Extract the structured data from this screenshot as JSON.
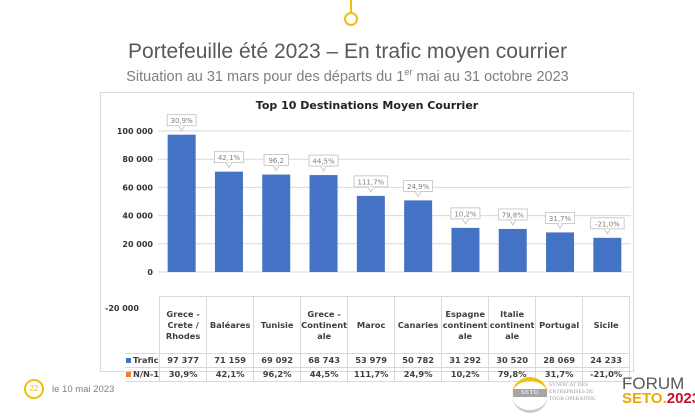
{
  "header": {
    "title": "Portefeuille été 2023 – En trafic moyen courrier",
    "subtitle_pre": "Situation au 31 mars pour des départs du 1",
    "subtitle_sup": "er",
    "subtitle_post": " mai au 31 octobre 2023"
  },
  "footer": {
    "page": "22",
    "date": "le 10 mai 2023",
    "logo_seto": "SETO",
    "logo_syndicat": "SYNDICAT DES ENTREPRISES DU TOUR OPERATING",
    "forum": "FORUM",
    "forum_seto": "SETO.",
    "forum_year": "2023"
  },
  "colors": {
    "bar": "#4472c4",
    "n1": "#ed7d31",
    "accent": "#f0c010",
    "year": "#c8102e"
  },
  "chart_data": {
    "type": "bar",
    "title": "Top 10 Destinations Moyen Courrier",
    "categories": [
      "Grece - Crete / Rhodes",
      "Baléares",
      "Tunisie",
      "Grece - Continentale",
      "Maroc",
      "Canaries",
      "Espagne continentale",
      "Italie continentale",
      "Portugal",
      "Sicile"
    ],
    "category_lines": [
      [
        "Grece -",
        "Crete /",
        "Rhodes"
      ],
      [
        "Baléares"
      ],
      [
        "Tunisie"
      ],
      [
        "Grece -",
        "Continent",
        "ale"
      ],
      [
        "Maroc"
      ],
      [
        "Canaries"
      ],
      [
        "Espagne",
        "continent",
        "ale"
      ],
      [
        "Italie",
        "continent",
        "ale"
      ],
      [
        "Portugal"
      ],
      [
        "Sicile"
      ]
    ],
    "series": [
      {
        "name": "Trafic",
        "values": [
          97377,
          71159,
          69092,
          68743,
          53979,
          50782,
          31292,
          30520,
          28069,
          24233
        ],
        "labels": [
          "97 377",
          "71 159",
          "69 092",
          "68 743",
          "53 979",
          "50 782",
          "31 292",
          "30 520",
          "28 069",
          "24 233"
        ]
      },
      {
        "name": "N/N-1",
        "values": [
          30.9,
          42.1,
          96.2,
          44.5,
          111.7,
          24.9,
          10.2,
          79.8,
          31.7,
          -21.0
        ],
        "labels": [
          "30,9%",
          "42,1%",
          "96,2%",
          "44,5%",
          "111,7%",
          "24,9%",
          "10,2%",
          "79,8%",
          "31,7%",
          "-21,0%"
        ]
      }
    ],
    "callouts": [
      "30,9%",
      "42,1%",
      "96,2",
      "44,5%",
      "111,7%",
      "24,9%",
      "10,2%",
      "79,8%",
      "31,7%",
      "-21,0%"
    ],
    "yticks": [
      100000,
      80000,
      60000,
      40000,
      20000,
      0,
      -20000
    ],
    "ytick_labels": [
      "100 000",
      "80 000",
      "60 000",
      "40 000",
      "20 000",
      "0",
      "-20 000"
    ],
    "ylim": [
      -20000,
      100000
    ],
    "grid": true,
    "legend": "table"
  }
}
